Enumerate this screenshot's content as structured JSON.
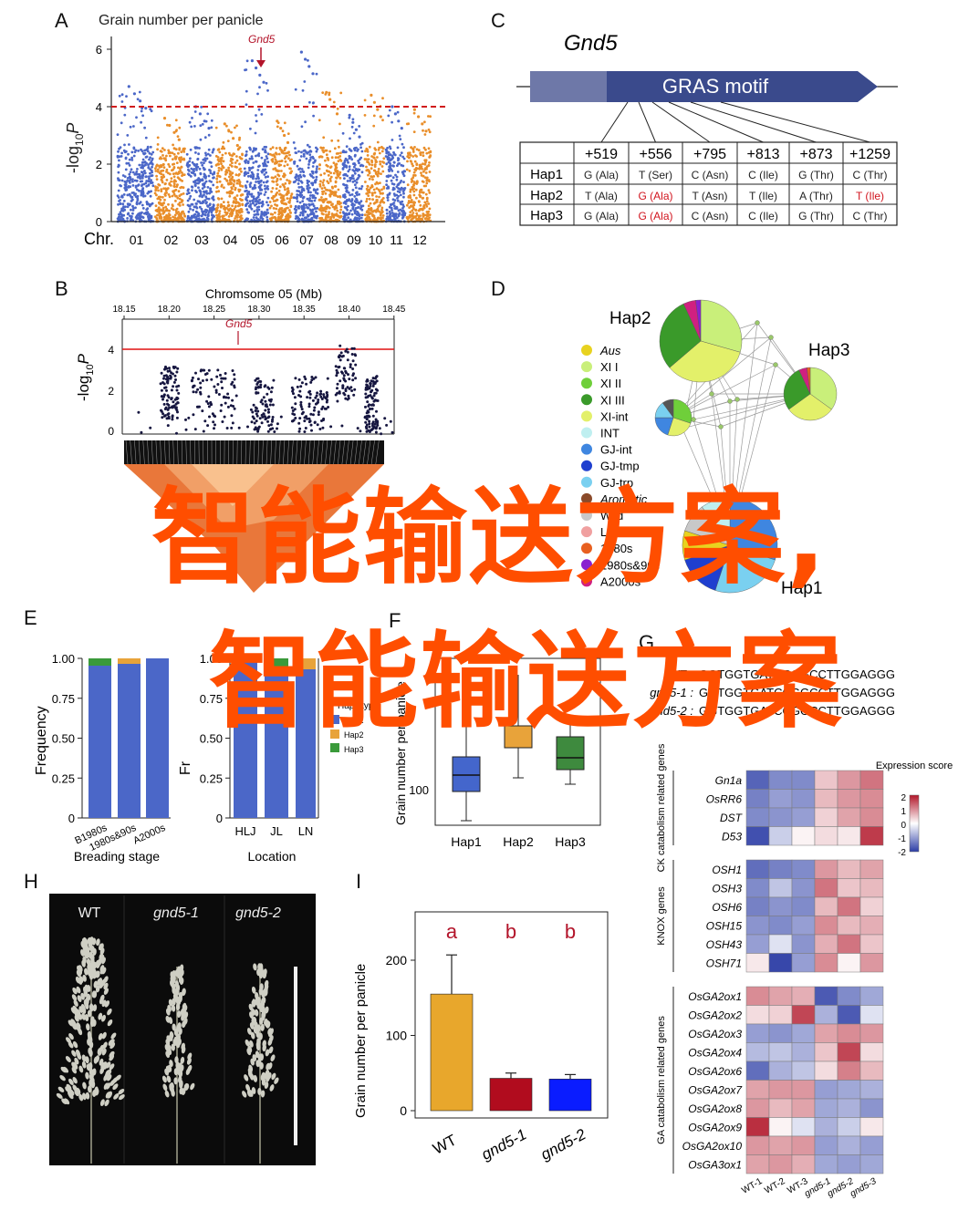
{
  "colors": {
    "blue": "#4b67c8",
    "orange": "#e98e2a",
    "red_dash": "#d11b1b",
    "gras_box": "#3a4a8c",
    "gras_light": "#6e78a8",
    "watermark": "#ff4e00",
    "hap_blue": "#4466cc",
    "hap_orange": "#e8a33a",
    "hap_green": "#2f8a2f",
    "wt_bar": "#e8a72c",
    "gnd5_1_bar": "#b10c1e",
    "gnd5_2_bar": "#0a1cff"
  },
  "panels": {
    "A": "A",
    "B": "B",
    "C": "C",
    "D": "D",
    "E": "E",
    "F": "F",
    "G": "G",
    "H": "H",
    "I": "I"
  },
  "panelA": {
    "title": "Grain number per panicle",
    "ylabel_pre": "-log",
    "ylabel_sub": "10",
    "ylabel_post": "P",
    "gene_label": "Gnd5",
    "x_prefix": "Chr.",
    "chromosomes": [
      "01",
      "02",
      "03",
      "04",
      "05",
      "06",
      "07",
      "08",
      "09",
      "10",
      "11",
      "12"
    ],
    "yticks": [
      "0",
      "2",
      "4",
      "6"
    ]
  },
  "panelB": {
    "title": "Chromsome 05 (Mb)",
    "positions": [
      "18.15",
      "18.20",
      "18.25",
      "18.30",
      "18.35",
      "18.40",
      "18.45"
    ],
    "gene_label": "Gnd5",
    "yticks": [
      "0",
      "2",
      "4"
    ],
    "ylabel_pre": "-log",
    "ylabel_sub": "10",
    "ylabel_post": "P"
  },
  "panelC": {
    "gene": "Gnd5",
    "motif": "GRAS  motif",
    "columns": [
      "+519",
      "+556",
      "+795",
      "+813",
      "+873",
      "+1259"
    ],
    "rows": [
      {
        "name": "Hap1",
        "cells": [
          "G (Ala)",
          "T (Ser)",
          "C (Asn)",
          "C (Ile)",
          "G (Thr)",
          "C (Thr)"
        ],
        "red": []
      },
      {
        "name": "Hap2",
        "cells": [
          "T (Ala)",
          "G (Ala)",
          "T (Asn)",
          "T (Ile)",
          "A (Thr)",
          "T (Ile)"
        ],
        "red": [
          1,
          5
        ]
      },
      {
        "name": "Hap3",
        "cells": [
          "G (Ala)",
          "G (Ala)",
          "C (Asn)",
          "C (Ile)",
          "G (Thr)",
          "C (Thr)"
        ],
        "red": [
          1
        ]
      }
    ]
  },
  "panelD": {
    "hap2": "Hap2",
    "hap3": "Hap3",
    "hap1": "Hap1",
    "legend": [
      {
        "label": "Aus",
        "color": "#e8d21f",
        "italic": true
      },
      {
        "label": "XI I",
        "color": "#c9ef7a",
        "italic": false
      },
      {
        "label": "XI II",
        "color": "#6fcf3a",
        "italic": false
      },
      {
        "label": "XI III",
        "color": "#3a9a2a",
        "italic": false
      },
      {
        "label": "XI-int",
        "color": "#e3f06a",
        "italic": false
      },
      {
        "label": "INT",
        "color": "#bfeff0",
        "italic": false
      },
      {
        "label": "GJ-int",
        "color": "#3f86e0",
        "italic": false
      },
      {
        "label": "GJ-tmp",
        "color": "#1f3fcf",
        "italic": false
      },
      {
        "label": "GJ-trp",
        "color": "#7ad0f0",
        "italic": false
      },
      {
        "label": "Aromatic",
        "color": "#8a4a2a",
        "italic": true
      },
      {
        "label": "Wild",
        "color": "#c8c8c8",
        "italic": false
      },
      {
        "label": "Landrace",
        "color": "#f0a0a0",
        "italic": false
      },
      {
        "label": "1980s",
        "color": "#e86020",
        "italic": false
      },
      {
        "label": "1980s&90s",
        "color": "#8a20d0",
        "italic": false
      },
      {
        "label": "A2000s",
        "color": "#d02080",
        "italic": false
      }
    ]
  },
  "panelE": {
    "ylabel": "Frequency",
    "yticks": [
      "0",
      "0.25",
      "0.50",
      "0.75",
      "1.00"
    ],
    "categories": [
      "B1980s",
      "1980s&90s",
      "A2000s"
    ],
    "xlabel": "Breading stage"
  },
  "panelE2": {
    "ylabel": "Fr",
    "yticks": [
      "0",
      "0.25",
      "0.50",
      "0.75",
      "1.00"
    ],
    "categories": [
      "HLJ",
      "JL",
      "LN"
    ],
    "xlabel": "Location",
    "legend_title": "Haplotype",
    "legend": [
      "Hap1",
      "Hap2",
      "Hap3"
    ]
  },
  "panelF": {
    "ylabel": "Grain number per panicle",
    "ytick": "100",
    "categories": [
      "Hap1",
      "Hap2",
      "Hap3"
    ],
    "sig": "a"
  },
  "panelG": {
    "seq": [
      {
        "name": "WT",
        "seq": "GGTGGTGATCCGGCCTTGGAGGG"
      },
      {
        "name": "gnd5-1",
        "seq": "GGTGGTGATCCGGCCTTGGAGGG"
      },
      {
        "name": "gnd5-2",
        "seq": "GGTGGTGATCCGGCCTTGGAGGG"
      }
    ],
    "legend_title": "Expression score",
    "legend_ticks": [
      "2",
      "1",
      "0",
      "-1",
      "-2"
    ],
    "groups": [
      {
        "title": "CK catabolism related genes",
        "genes": [
          "Gn1a",
          "OsRR6",
          "DST",
          "D53"
        ]
      },
      {
        "title": "KNOX genes",
        "genes": [
          "OSH1",
          "OSH3",
          "OSH6",
          "OSH15",
          "OSH43",
          "OSH71"
        ]
      },
      {
        "title": "GA catabolism related genes",
        "genes": [
          "OsGA2ox1",
          "OsGA2ox2",
          "OsGA2ox3",
          "OsGA2ox4",
          "OsGA2ox6",
          "OsGA2ox7",
          "OsGA2ox8",
          "OsGA2ox9",
          "OsGA2ox10",
          "OsGA3ox1"
        ]
      }
    ],
    "samples": [
      "WT-1",
      "WT-2",
      "WT-3",
      "gnd5-1",
      "gnd5-2",
      "gnd5-3"
    ],
    "values": [
      [
        -1.6,
        -1.2,
        -1.2,
        0.5,
        0.9,
        1.2
      ],
      [
        -1.3,
        -1.0,
        -1.1,
        0.6,
        0.9,
        1.0
      ],
      [
        -1.2,
        -1.1,
        -1.0,
        0.4,
        0.8,
        1.0
      ],
      [
        -1.8,
        -0.5,
        0.1,
        0.3,
        0.2,
        1.7
      ],
      [
        -1.5,
        -1.3,
        -1.2,
        0.9,
        0.6,
        0.8
      ],
      [
        -1.2,
        -0.6,
        -1.1,
        1.2,
        0.5,
        0.6
      ],
      [
        -1.3,
        -1.1,
        -1.2,
        0.6,
        1.2,
        0.4
      ],
      [
        -1.1,
        -1.2,
        -1.0,
        1.0,
        0.6,
        0.7
      ],
      [
        -1.0,
        -0.3,
        -1.1,
        0.7,
        1.2,
        0.5
      ],
      [
        0.2,
        -1.9,
        -1.0,
        1.0,
        0.1,
        0.9
      ],
      [
        1.0,
        0.8,
        0.7,
        -1.7,
        -1.2,
        -0.9
      ],
      [
        0.3,
        0.4,
        1.6,
        -0.8,
        -1.7,
        -0.3
      ],
      [
        -1.0,
        -1.1,
        -0.9,
        0.8,
        1.0,
        0.9
      ],
      [
        -0.7,
        -0.6,
        -0.8,
        0.5,
        1.6,
        0.3
      ],
      [
        -1.5,
        -0.8,
        -0.6,
        0.3,
        1.1,
        0.6
      ],
      [
        0.8,
        0.9,
        0.9,
        -1.0,
        -0.9,
        -0.8
      ],
      [
        0.9,
        0.6,
        0.8,
        -0.9,
        -0.8,
        -1.1
      ],
      [
        1.8,
        0.1,
        -0.3,
        -0.8,
        -0.5,
        0.2
      ],
      [
        0.9,
        0.8,
        0.9,
        -1.0,
        -0.8,
        -1.0
      ],
      [
        0.8,
        0.9,
        0.7,
        -0.9,
        -1.0,
        -0.9
      ]
    ]
  },
  "panelH": {
    "labels": [
      "WT",
      "gnd5-1",
      "gnd5-2"
    ]
  },
  "chart_data": {
    "type": "bar",
    "title": "",
    "ylabel": "Grain number per panicle",
    "categories": [
      "WT",
      "gnd5-1",
      "gnd5-2"
    ],
    "values": [
      155,
      43,
      42
    ],
    "errors": [
      52,
      7,
      6
    ],
    "significance": [
      "a",
      "b",
      "b"
    ],
    "yticks": [
      "0",
      "100",
      "200"
    ],
    "ylim": [
      0,
      240
    ]
  },
  "watermark": {
    "line1": "智能输送方案,",
    "line2": "智能输送方案"
  }
}
